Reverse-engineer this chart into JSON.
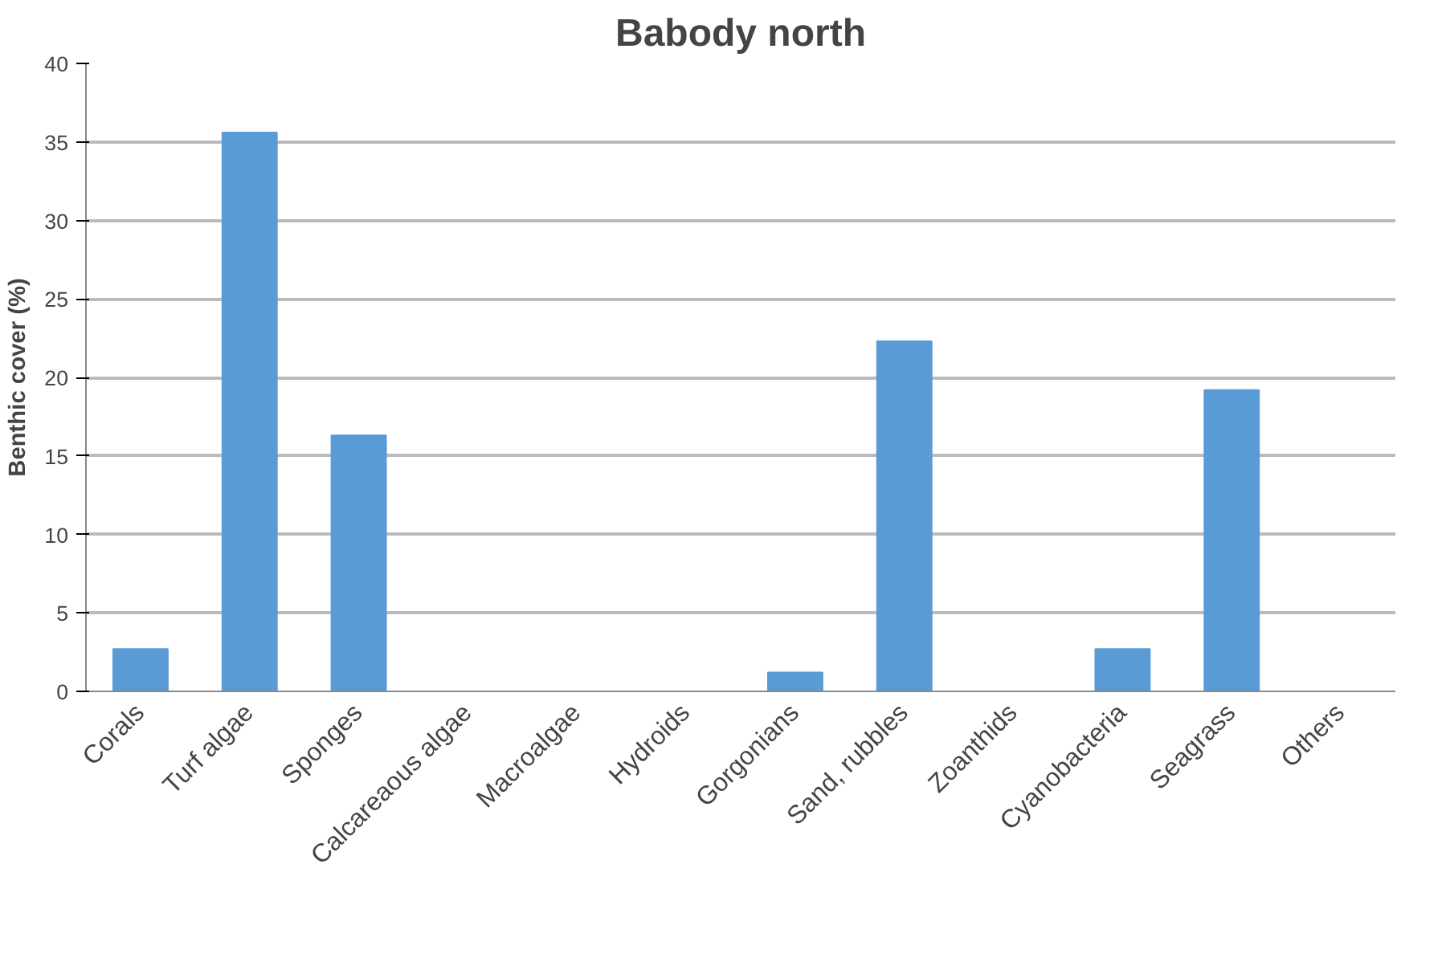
{
  "chart_data": {
    "type": "bar",
    "title": "Babody north",
    "ylabel": "Benthic cover (%)",
    "categories": [
      "Corals",
      "Turf algae",
      "Sponges",
      "Calcareaous algae",
      "Macroalgae",
      "Hydroids",
      "Gorgonians",
      "Sand, rubbles",
      "Zoanthids",
      "Cyanobacteria",
      "Seagrass",
      "Others"
    ],
    "values": [
      2.7,
      35.6,
      16.3,
      0,
      0,
      0,
      1.2,
      22.3,
      0,
      2.7,
      19.2,
      0
    ],
    "color": "#5b9bd5",
    "ylim": [
      0,
      40
    ],
    "yticks": [
      0,
      5,
      10,
      15,
      20,
      25,
      30,
      35,
      40
    ],
    "grid": "y"
  }
}
